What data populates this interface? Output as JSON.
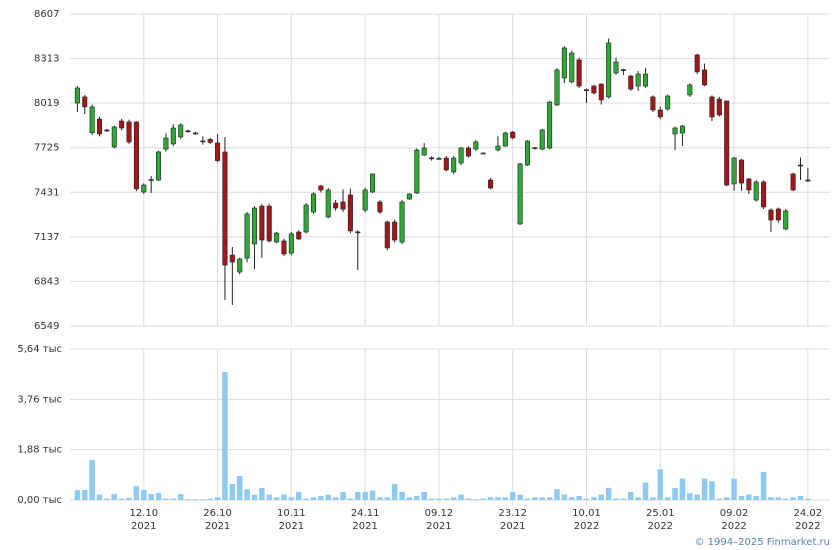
{
  "chart_data": [
    {
      "type": "candlestick",
      "open": [
        8020,
        8060,
        7823,
        7914,
        7842,
        7730,
        7901,
        7895,
        7895,
        7433,
        7512,
        7512,
        7716,
        7750,
        7796,
        7836,
        7822,
        7770,
        7780,
        7756,
        7697,
        7017,
        6905,
        6997,
        7090,
        7340,
        7340,
        7103,
        7110,
        7030,
        7169,
        7169,
        7301,
        7473,
        7268,
        7360,
        7367,
        7413,
        7170,
        7314,
        7433,
        7367,
        7235,
        7235,
        7103,
        7387,
        7426,
        7677,
        7658,
        7650,
        7657,
        7565,
        7624,
        7723,
        7716,
        7690,
        7512,
        7710,
        7736,
        7828,
        7222,
        7611,
        7720,
        7716,
        7723,
        8007,
        8185,
        8159,
        8304,
        8108,
        8132,
        8145,
        8060,
        8218,
        8240,
        8198,
        8132,
        8132,
        8060,
        7974,
        7980,
        7816,
        7822,
        8073,
        8337,
        8238,
        8060,
        8046,
        8033,
        7486,
        7644,
        7519,
        7380,
        7499,
        7314,
        7321,
        7189,
        7552,
        7611,
        7512
      ],
      "high": [
        8132,
        8073,
        8010,
        7930,
        7850,
        7870,
        7915,
        7910,
        7900,
        7490,
        7538,
        7705,
        7820,
        7880,
        7885,
        7845,
        7830,
        7800,
        7790,
        7815,
        7796,
        7070,
        7000,
        7300,
        7340,
        7355,
        7355,
        7170,
        7125,
        7170,
        7180,
        7360,
        7430,
        7480,
        7460,
        7380,
        7450,
        7455,
        7180,
        7460,
        7555,
        7380,
        7245,
        7250,
        7380,
        7425,
        7720,
        7755,
        7668,
        7665,
        7670,
        7670,
        7730,
        7735,
        7775,
        7695,
        7525,
        7800,
        7830,
        7835,
        7625,
        7775,
        7730,
        7850,
        8035,
        8250,
        8395,
        8365,
        8318,
        8115,
        8140,
        8150,
        8445,
        8320,
        8245,
        8205,
        8230,
        8250,
        8070,
        7995,
        8075,
        7865,
        7875,
        8150,
        8345,
        8280,
        8070,
        8060,
        8035,
        7665,
        7650,
        7525,
        7510,
        7510,
        7325,
        7330,
        7320,
        7560,
        7660,
        7590
      ],
      "low": [
        7961,
        7947,
        7810,
        7800,
        7830,
        7720,
        7840,
        7750,
        7440,
        7420,
        7427,
        7505,
        7700,
        7735,
        7785,
        7825,
        7812,
        7745,
        7750,
        7630,
        6720,
        6688,
        6890,
        6970,
        6925,
        7000,
        7100,
        7095,
        7010,
        7015,
        7115,
        7160,
        7290,
        7430,
        7260,
        7310,
        7300,
        7160,
        6918,
        7300,
        7425,
        7290,
        7050,
        7100,
        7090,
        7380,
        7420,
        7670,
        7640,
        7645,
        7570,
        7550,
        7610,
        7660,
        7705,
        7682,
        7450,
        7700,
        7730,
        7780,
        7215,
        7605,
        7712,
        7710,
        7715,
        8000,
        8150,
        8150,
        8118,
        8020,
        8075,
        8010,
        8050,
        8205,
        8205,
        8100,
        8100,
        8120,
        7960,
        7915,
        7970,
        7710,
        7735,
        8060,
        8210,
        8130,
        7900,
        7930,
        7470,
        7440,
        7440,
        7420,
        7370,
        7320,
        7170,
        7230,
        7180,
        7440,
        7512,
        7500
      ],
      "close": [
        8119,
        7994,
        7994,
        7816,
        7840,
        7862,
        7855,
        7763,
        7453,
        7479,
        7515,
        7697,
        7789,
        7855,
        7875,
        7832,
        7820,
        7768,
        7760,
        7640,
        6951,
        6971,
        6991,
        7288,
        7327,
        7116,
        7110,
        7162,
        7024,
        7156,
        7123,
        7347,
        7420,
        7446,
        7446,
        7327,
        7320,
        7176,
        7166,
        7446,
        7552,
        7301,
        7064,
        7116,
        7367,
        7420,
        7710,
        7723,
        7656,
        7655,
        7578,
        7657,
        7723,
        7670,
        7763,
        7690,
        7459,
        7736,
        7822,
        7790,
        7618,
        7769,
        7725,
        7842,
        8026,
        8238,
        8383,
        8350,
        8132,
        8105,
        8086,
        8040,
        8416,
        8290,
        8238,
        8112,
        8211,
        8211,
        7974,
        7928,
        8066,
        7855,
        7868,
        8139,
        8225,
        8139,
        7928,
        7941,
        7479,
        7657,
        7492,
        7446,
        7499,
        7334,
        7248,
        7248,
        7308,
        7446,
        7610,
        7510
      ],
      "up_color": "#2ea836",
      "down_color": "#a4161a",
      "ylim": [
        6549,
        8607
      ],
      "yticks": [
        6549,
        6843,
        7137,
        7431,
        7725,
        8019,
        8313,
        8607
      ],
      "xlim": [
        -1,
        102
      ],
      "grid": true
    },
    {
      "type": "bar",
      "values": [
        0.37,
        0.37,
        1.49,
        0.2,
        0.05,
        0.22,
        0.05,
        0.08,
        0.52,
        0.37,
        0.22,
        0.26,
        0.05,
        0.05,
        0.22,
        0.03,
        0.03,
        0.03,
        0.05,
        0.1,
        4.78,
        0.6,
        0.9,
        0.4,
        0.2,
        0.45,
        0.2,
        0.1,
        0.2,
        0.1,
        0.3,
        0.05,
        0.1,
        0.15,
        0.2,
        0.1,
        0.3,
        0.05,
        0.3,
        0.3,
        0.35,
        0.1,
        0.1,
        0.6,
        0.3,
        0.1,
        0.15,
        0.3,
        0.05,
        0.05,
        0.05,
        0.1,
        0.2,
        0.05,
        0.03,
        0.05,
        0.1,
        0.1,
        0.1,
        0.3,
        0.2,
        0.05,
        0.1,
        0.1,
        0.1,
        0.4,
        0.2,
        0.1,
        0.15,
        0.05,
        0.1,
        0.2,
        0.45,
        0.05,
        0.05,
        0.3,
        0.1,
        0.65,
        0.1,
        1.15,
        0.1,
        0.45,
        0.8,
        0.25,
        0.2,
        0.8,
        0.7,
        0.05,
        0.1,
        0.8,
        0.15,
        0.2,
        0.15,
        1.05,
        0.1,
        0.1,
        0.05,
        0.1,
        0.15,
        0.05
      ],
      "color": "#8ec9f2",
      "ylim": [
        0,
        5.64
      ],
      "yticks": [
        {
          "value": 0,
          "label": "0,00 тыс"
        },
        {
          "value": 1.88,
          "label": "1,88 тыс"
        },
        {
          "value": 3.76,
          "label": "3,76 тыс"
        },
        {
          "value": 5.64,
          "label": "5,64 тыс"
        }
      ],
      "xlim": [
        -1,
        102
      ],
      "xticks": [
        {
          "value": 9,
          "label": "12.10",
          "year": "2021"
        },
        {
          "value": 19,
          "label": "26.10",
          "year": "2021"
        },
        {
          "value": 29,
          "label": "10.11",
          "year": "2021"
        },
        {
          "value": 39,
          "label": "24.11",
          "year": "2021"
        },
        {
          "value": 49,
          "label": "09.12",
          "year": "2021"
        },
        {
          "value": 59,
          "label": "23.12",
          "year": "2021"
        },
        {
          "value": 69,
          "label": "10.01",
          "year": "2022"
        },
        {
          "value": 79,
          "label": "25.01",
          "year": "2022"
        },
        {
          "value": 89,
          "label": "09.02",
          "year": "2022"
        },
        {
          "value": 99,
          "label": "24.02",
          "year": "2022"
        }
      ],
      "grid": true
    }
  ],
  "footer": "© 1994–2025 Finmarket.ru"
}
